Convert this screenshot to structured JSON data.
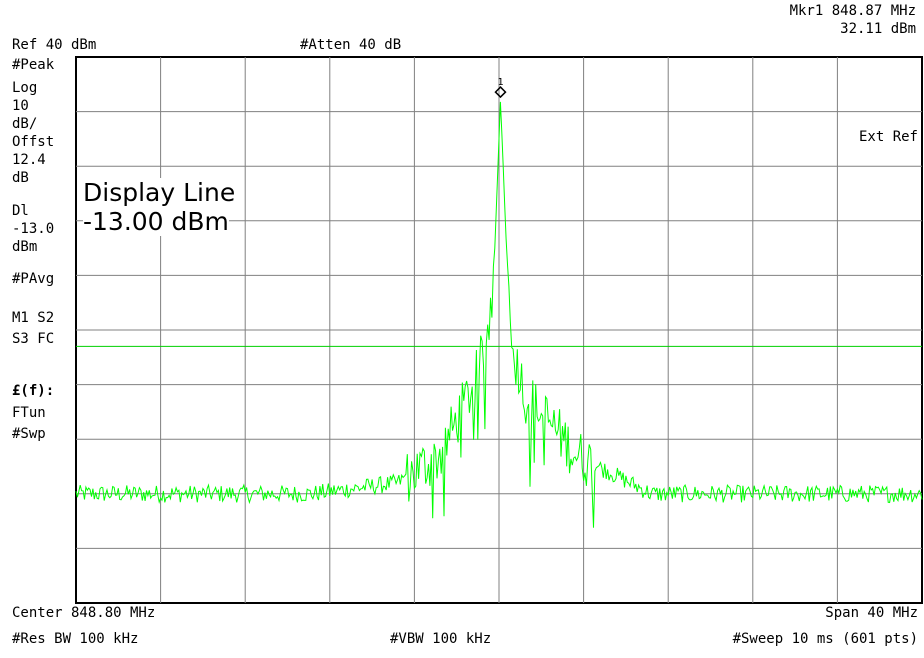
{
  "header": {
    "marker_label": "Mkr1  848.87 MHz",
    "marker_amplitude": "32.11 dBm",
    "ref_level": "Ref 40 dBm",
    "attenuation": "#Atten 40 dB"
  },
  "side_annotations": {
    "detector": "#Peak",
    "scale_type": "Log",
    "scale_value": "10",
    "scale_unit": "dB/",
    "offset_label": "Offst",
    "offset_value": "12.4",
    "offset_unit": "dB",
    "display_line_label": "Dl",
    "display_line_value": "-13.0",
    "display_line_unit": "dBm",
    "averaging": "#PAvg",
    "m1s2": "M1  S2",
    "s3fc": "S3  FC",
    "ff": "£(f):",
    "ftun": "FTun",
    "swp": "#Swp",
    "ext_ref": "Ext Ref"
  },
  "display_line_box": {
    "title": "Display Line",
    "value": "-13.00 dBm"
  },
  "footer": {
    "center": "Center 848.80 MHz",
    "span": "Span 40 MHz",
    "res_bw": "#Res BW 100 kHz",
    "vbw": "#VBW 100 kHz",
    "sweep": "#Sweep 10 ms (601 pts)"
  },
  "colors": {
    "trace": "#00ff00",
    "display_line": "#00d000",
    "grid": "#808080",
    "frame": "#000000"
  },
  "chart_data": {
    "type": "line",
    "title": "",
    "xlabel": "",
    "ylabel": "",
    "x_unit": "MHz",
    "y_unit": "dBm",
    "xlim": [
      828.8,
      868.8
    ],
    "ylim": [
      -60,
      40
    ],
    "grid": true,
    "display_line_dbm": -13.0,
    "marker": {
      "label": "1",
      "x": 848.87,
      "y": 32.11
    },
    "series": [
      {
        "x": [
          828.8,
          832.0,
          836.0,
          840.0,
          844.0,
          846.0,
          847.0,
          847.8,
          848.3,
          848.6,
          848.75,
          848.87,
          849.0,
          849.15,
          849.4,
          850.0,
          851.0,
          852.5,
          856.0,
          860.0,
          864.0,
          868.8
        ],
        "y": [
          -40,
          -40,
          -40,
          -40,
          -38,
          -33,
          -25,
          -18,
          -10,
          5,
          20,
          32.11,
          20,
          5,
          -10,
          -22,
          -26,
          -33,
          -40,
          -40,
          -40,
          -40
        ]
      }
    ]
  }
}
